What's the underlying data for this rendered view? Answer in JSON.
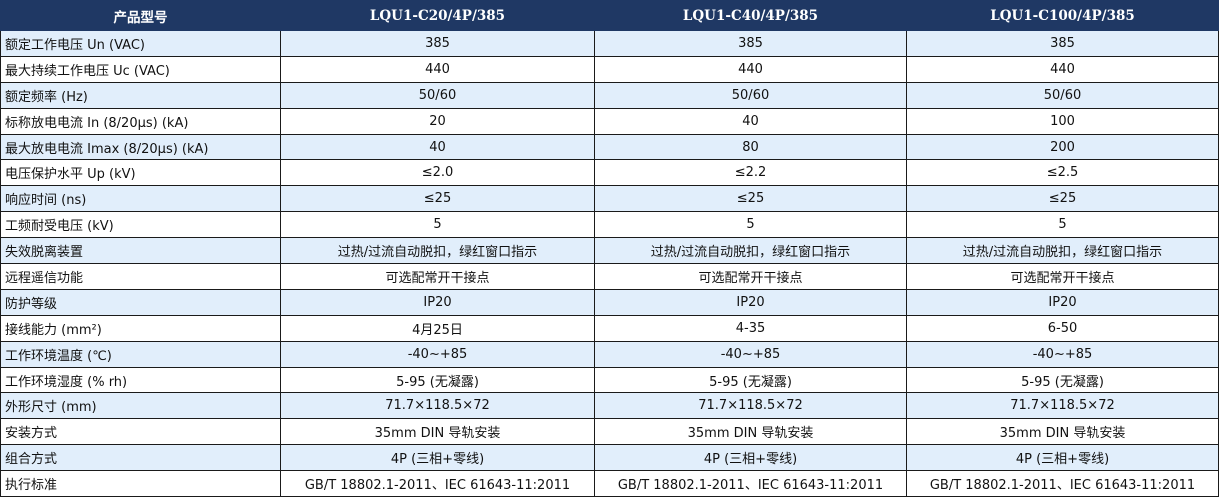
{
  "header": [
    "产品型号",
    "LQU1-C20/4P/385",
    "LQU1-C40/4P/385",
    "LQU1-C100/4P/385"
  ],
  "rows": [
    {
      "label": "额定工作电压 Un (VAC)",
      "values": [
        "385",
        "385",
        "385"
      ]
    },
    {
      "label": "最大持续工作电压 Uc (VAC)",
      "values": [
        "440",
        "440",
        "440"
      ]
    },
    {
      "label": "额定频率 (Hz)",
      "values": [
        "50/60",
        "50/60",
        "50/60"
      ]
    },
    {
      "label": "标称放电电流 In (8/20μs) (kA)",
      "values": [
        "20",
        "40",
        "100"
      ]
    },
    {
      "label": "最大放电电流 Imax (8/20μs) (kA)",
      "values": [
        "40",
        "80",
        "200"
      ]
    },
    {
      "label": "电压保护水平 Up (kV)",
      "values": [
        "≤2.0",
        "≤2.2",
        "≤2.5"
      ]
    },
    {
      "label": "响应时间 (ns)",
      "values": [
        "≤25",
        "≤25",
        "≤25"
      ]
    },
    {
      "label": "工频耐受电压 (kV)",
      "values": [
        "5",
        "5",
        "5"
      ]
    },
    {
      "label": "失效脱离装置",
      "values": [
        "过热/过流自动脱扣，绿红窗口指示",
        "过热/过流自动脱扣，绿红窗口指示",
        "过热/过流自动脱扣，绿红窗口指示"
      ]
    },
    {
      "label": "远程遥信功能",
      "values": [
        "可选配常开干接点",
        "可选配常开干接点",
        "可选配常开干接点"
      ]
    },
    {
      "label": "防护等级",
      "values": [
        "IP20",
        "IP20",
        "IP20"
      ]
    },
    {
      "label": "接线能力 (mm²)",
      "values": [
        "4月25日",
        "4-35",
        "6-50"
      ]
    },
    {
      "label": "工作环境温度 (℃)",
      "values": [
        "-40~+85",
        "-40~+85",
        "-40~+85"
      ]
    },
    {
      "label": "工作环境湿度 (% rh)",
      "values": [
        "5-95 (无凝露)",
        "5-95 (无凝露)",
        "5-95 (无凝露)"
      ]
    },
    {
      "label": "外形尺寸 (mm)",
      "values": [
        "71.7×118.5×72",
        "71.7×118.5×72",
        "71.7×118.5×72"
      ]
    },
    {
      "label": "安装方式",
      "values": [
        "35mm DIN 导轨安装",
        "35mm DIN 导轨安装",
        "35mm DIN 导轨安装"
      ]
    },
    {
      "label": "组合方式",
      "values": [
        "4P (三相+零线)",
        "4P (三相+零线)",
        "4P (三相+零线)"
      ]
    },
    {
      "label": "执行标准",
      "values": [
        "GB/T 18802.1-2011、IEC 61643-11:2011",
        "GB/T 18802.1-2011、IEC 61643-11:2011",
        "GB/T 18802.1-2011、IEC 61643-11:2011"
      ]
    }
  ],
  "colors": {
    "header_bg": "#1f3864",
    "alt_row_bg": "#e1eefb"
  }
}
